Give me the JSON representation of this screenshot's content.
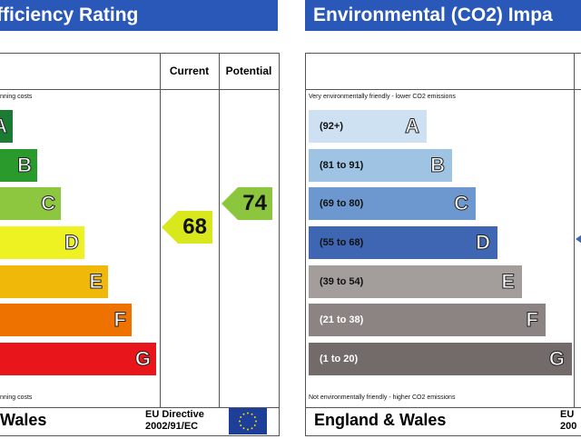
{
  "energy": {
    "title": "fficiency Rating",
    "columns": {
      "current": "Current",
      "potential": "Potential"
    },
    "top_note": "nning costs",
    "bottom_note": "nning costs",
    "bands": [
      {
        "letter": "A",
        "color": "#1b7b32"
      },
      {
        "letter": "B",
        "color": "#2a9a2c"
      },
      {
        "letter": "C",
        "color": "#8dc63f"
      },
      {
        "letter": "D",
        "color": "#eef222"
      },
      {
        "letter": "E",
        "color": "#f0b90a"
      },
      {
        "letter": "F",
        "color": "#ee7200"
      },
      {
        "letter": "G",
        "color": "#e8151b"
      }
    ],
    "current": {
      "value": "68",
      "color": "#d8e81c"
    },
    "potential": {
      "value": "74",
      "color": "#8cc63f"
    },
    "footer_region": "Wales",
    "eu_line1": "EU Directive",
    "eu_line2": "2002/91/EC"
  },
  "co2": {
    "title": "Environmental (CO2) Impa",
    "top_note": "Very environmentally friendly - lower CO2 emissions",
    "bottom_note": "Not environmentally friendly - higher CO2 emissions",
    "bands": [
      {
        "letter": "A",
        "range": "(92+)",
        "color": "#cde1f2",
        "text": "#111"
      },
      {
        "letter": "B",
        "range": "(81 to 91)",
        "color": "#9fc3e2",
        "text": "#111"
      },
      {
        "letter": "C",
        "range": "(69 to 80)",
        "color": "#6c97cf",
        "text": "#111"
      },
      {
        "letter": "D",
        "range": "(55 to 68)",
        "color": "#3e66b3",
        "text": "#111"
      },
      {
        "letter": "E",
        "range": "(39 to 54)",
        "color": "#a39d9b",
        "text": "#111"
      },
      {
        "letter": "F",
        "range": "(21 to 38)",
        "color": "#8b8482",
        "text": "#fff"
      },
      {
        "letter": "G",
        "range": "(1 to 20)",
        "color": "#726b6a",
        "text": "#fff"
      }
    ],
    "indicator_color": "#3e66b3",
    "footer_region": "England & Wales",
    "eu_line1": "EU",
    "eu_line2": "200"
  }
}
